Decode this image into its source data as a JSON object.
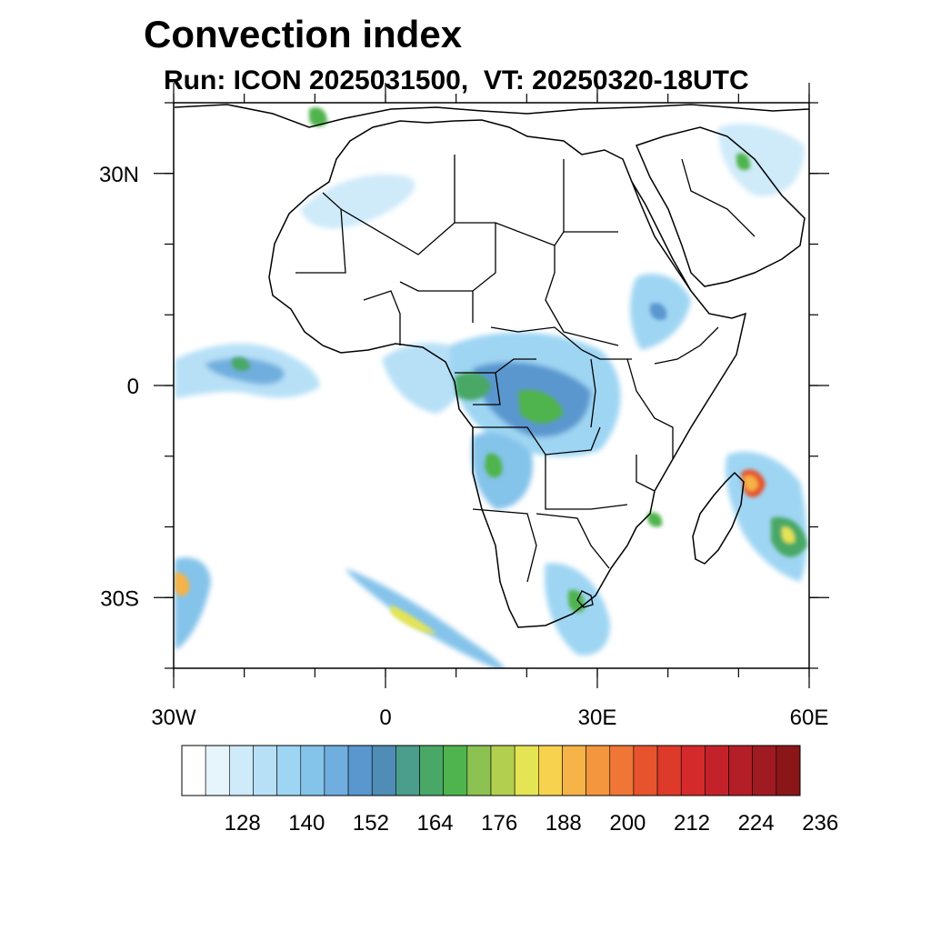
{
  "title": "Convection index",
  "subtitle": "Run: ICON 2025031500,  VT: 20250320-18UTC",
  "axes": {
    "x_ticks": [
      {
        "label": "30W",
        "lon": -30
      },
      {
        "label": "0",
        "lon": 0
      },
      {
        "label": "30E",
        "lon": 30
      },
      {
        "label": "60E",
        "lon": 60
      }
    ],
    "y_ticks": [
      {
        "label": "30N",
        "lat": 30
      },
      {
        "label": "0",
        "lat": 0
      },
      {
        "label": "30S",
        "lat": -30
      }
    ],
    "lon_range": [
      -30,
      60
    ],
    "lat_range": [
      -40,
      40
    ]
  },
  "colorbar": {
    "labels": [
      "128",
      "140",
      "152",
      "164",
      "176",
      "188",
      "200",
      "212",
      "224",
      "236"
    ],
    "colors": [
      "#ffffff",
      "#e6f4fc",
      "#cfeaf9",
      "#b7e0f7",
      "#9ed5f3",
      "#84c3ea",
      "#6faede",
      "#5a97cf",
      "#4f8cb6",
      "#4b9e8c",
      "#49a866",
      "#4fb44e",
      "#8cc252",
      "#b3cf4f",
      "#e5e454",
      "#f7d24e",
      "#f6b347",
      "#f3963e",
      "#ef7636",
      "#e7532d",
      "#de3a2a",
      "#d42a2b",
      "#c4222b",
      "#b31e27",
      "#a01a22",
      "#8a1618"
    ]
  }
}
